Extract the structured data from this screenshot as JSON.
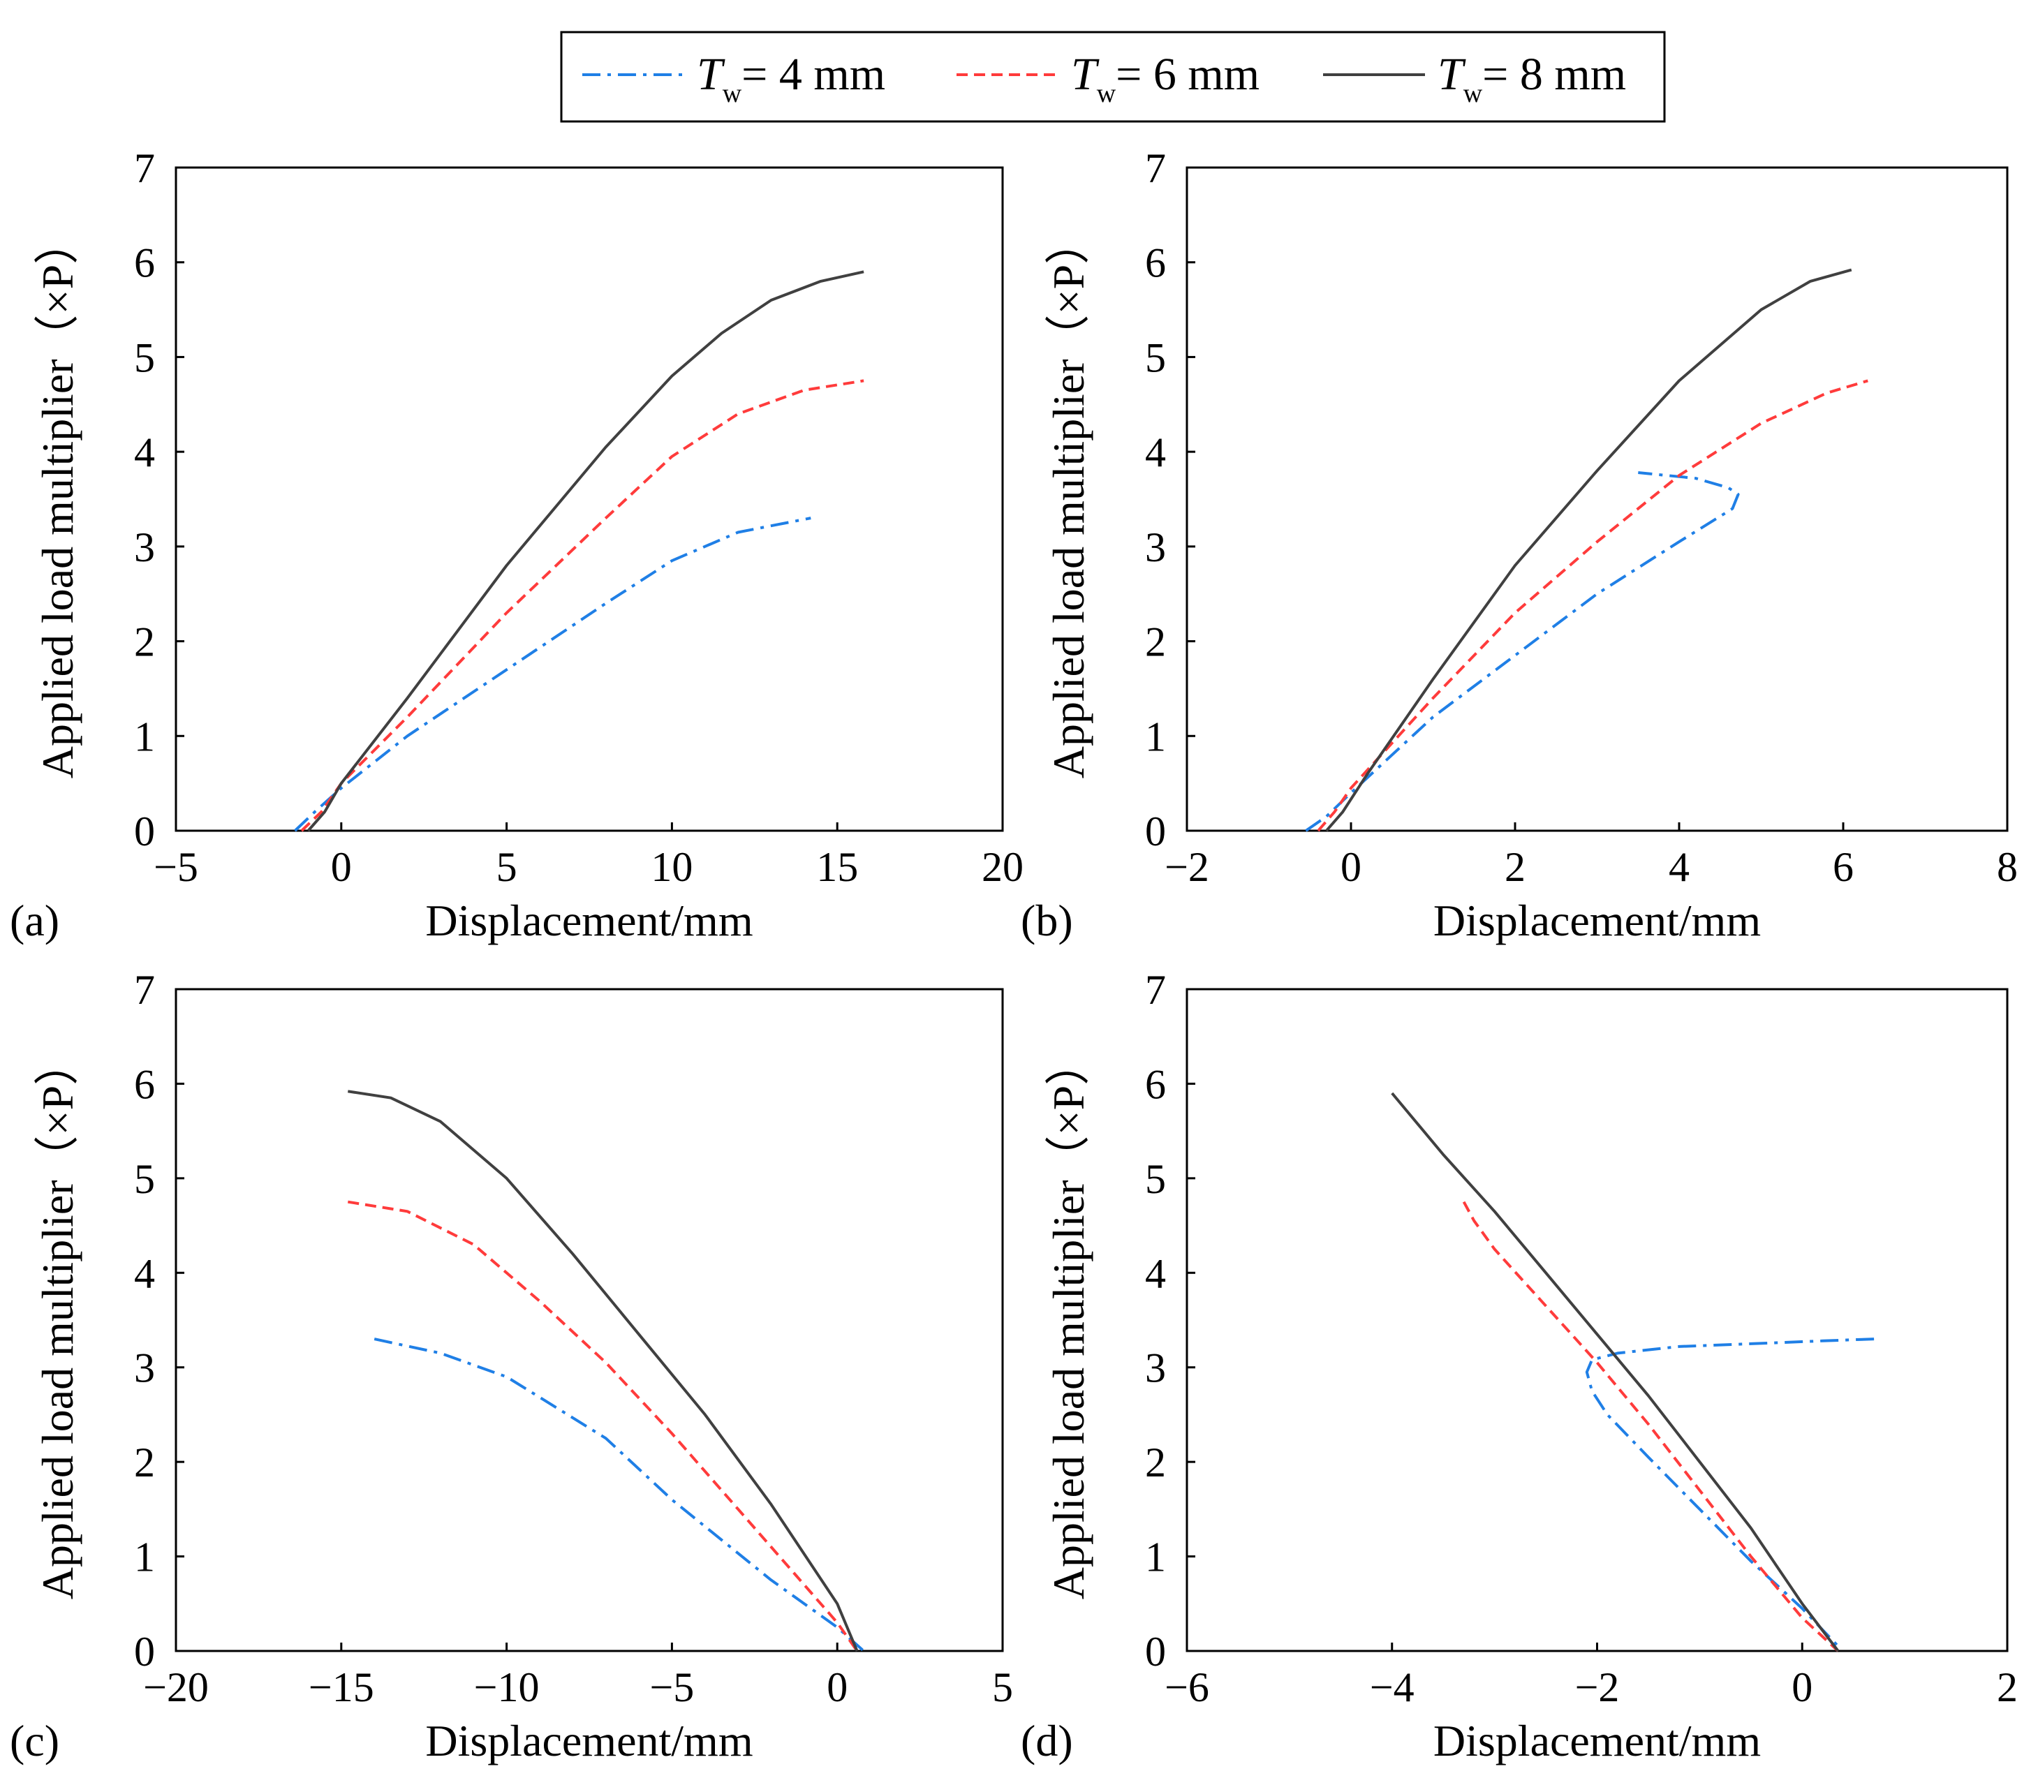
{
  "legend": {
    "entries": [
      {
        "symbol": "T",
        "sub": "w",
        "rest": "= 4 mm",
        "color": "#1f7fe6",
        "dash": "dashdot"
      },
      {
        "symbol": "T",
        "sub": "w",
        "rest": "= 6 mm",
        "color": "#ff3b3b",
        "dash": "dash"
      },
      {
        "symbol": "T",
        "sub": "w",
        "rest": "= 8 mm",
        "color": "#404040",
        "dash": "solid"
      }
    ]
  },
  "chart_data": [
    {
      "type": "line",
      "panel": "(a)",
      "xlabel": "Displacement/mm",
      "ylabel": "Applied load multiplier（×P）",
      "xlim": [
        -5,
        20
      ],
      "ylim": [
        0,
        7
      ],
      "xticks": [
        "−5",
        "0",
        "5",
        "10",
        "15",
        "20"
      ],
      "xtick_values": [
        -5,
        0,
        5,
        10,
        15,
        20
      ],
      "yticks": [
        "0",
        "1",
        "2",
        "3",
        "4",
        "5",
        "6",
        "7"
      ],
      "ytick_values": [
        0,
        1,
        2,
        3,
        4,
        5,
        6,
        7
      ],
      "series": [
        {
          "name": "Tw = 4 mm",
          "x": [
            -1.4,
            -0.8,
            0,
            2,
            5,
            8,
            10,
            12,
            14.2
          ],
          "y": [
            0,
            0.2,
            0.45,
            1.0,
            1.7,
            2.4,
            2.85,
            3.15,
            3.3
          ]
        },
        {
          "name": "Tw = 6 mm",
          "x": [
            -1.2,
            -0.6,
            0,
            2,
            5,
            8,
            10,
            12,
            14,
            15.8
          ],
          "y": [
            0,
            0.2,
            0.5,
            1.2,
            2.3,
            3.3,
            3.95,
            4.4,
            4.65,
            4.75
          ]
        },
        {
          "name": "Tw = 8 mm",
          "x": [
            -1.0,
            -0.5,
            0,
            2,
            5,
            8,
            10,
            11.5,
            13,
            14.5,
            15.8
          ],
          "y": [
            0,
            0.2,
            0.5,
            1.4,
            2.8,
            4.05,
            4.8,
            5.25,
            5.6,
            5.8,
            5.9
          ]
        }
      ]
    },
    {
      "type": "line",
      "panel": "(b)",
      "xlabel": "Displacement/mm",
      "ylabel": "Applied load multiplier（×P）",
      "xlim": [
        -2,
        8
      ],
      "ylim": [
        0,
        7
      ],
      "xticks": [
        "−2",
        "0",
        "2",
        "4",
        "6",
        "8"
      ],
      "xtick_values": [
        -2,
        0,
        2,
        4,
        6,
        8
      ],
      "yticks": [
        "0",
        "1",
        "2",
        "3",
        "4",
        "5",
        "6",
        "7"
      ],
      "ytick_values": [
        0,
        1,
        2,
        3,
        4,
        5,
        6,
        7
      ],
      "series": [
        {
          "name": "Tw = 4 mm",
          "x": [
            -0.55,
            -0.3,
            0,
            1,
            2,
            3,
            4,
            4.65,
            4.72,
            4.6,
            4.2,
            3.5
          ],
          "y": [
            0,
            0.15,
            0.4,
            1.2,
            1.85,
            2.5,
            3.05,
            3.4,
            3.55,
            3.62,
            3.72,
            3.78
          ]
        },
        {
          "name": "Tw = 6 mm",
          "x": [
            -0.4,
            -0.2,
            0,
            1,
            2,
            3,
            4,
            5,
            5.8,
            6.3
          ],
          "y": [
            0,
            0.2,
            0.45,
            1.4,
            2.3,
            3.05,
            3.75,
            4.3,
            4.62,
            4.75
          ]
        },
        {
          "name": "Tw = 8 mm",
          "x": [
            -0.3,
            -0.1,
            0.2,
            1,
            2,
            3,
            4,
            5,
            5.6,
            6.1
          ],
          "y": [
            0,
            0.2,
            0.6,
            1.6,
            2.8,
            3.8,
            4.75,
            5.5,
            5.8,
            5.92
          ]
        }
      ]
    },
    {
      "type": "line",
      "panel": "(c)",
      "xlabel": "Displacement/mm",
      "ylabel": "Applied load multiplier（×P）",
      "xlim": [
        -20,
        5
      ],
      "ylim": [
        0,
        7
      ],
      "xticks": [
        "−20",
        "−15",
        "−10",
        "−5",
        "0",
        "5"
      ],
      "xtick_values": [
        -20,
        -15,
        -10,
        -5,
        0,
        5
      ],
      "yticks": [
        "0",
        "1",
        "2",
        "3",
        "4",
        "5",
        "6",
        "7"
      ],
      "ytick_values": [
        0,
        1,
        2,
        3,
        4,
        5,
        6,
        7
      ],
      "series": [
        {
          "name": "Tw = 4 mm",
          "x": [
            -14,
            -12,
            -10,
            -7,
            -5,
            -2,
            0,
            0.8
          ],
          "y": [
            3.3,
            3.15,
            2.9,
            2.25,
            1.6,
            0.75,
            0.25,
            0
          ]
        },
        {
          "name": "Tw = 6 mm",
          "x": [
            -14.8,
            -13,
            -11,
            -9,
            -7,
            -5,
            -2,
            0,
            0.6
          ],
          "y": [
            4.75,
            4.65,
            4.3,
            3.7,
            3.05,
            2.3,
            1.1,
            0.3,
            0
          ]
        },
        {
          "name": "Tw = 8 mm",
          "x": [
            -14.8,
            -13.5,
            -12,
            -10,
            -8,
            -6,
            -4,
            -2,
            0,
            0.6
          ],
          "y": [
            5.92,
            5.85,
            5.6,
            5.0,
            4.2,
            3.35,
            2.5,
            1.55,
            0.5,
            0
          ]
        }
      ]
    },
    {
      "type": "line",
      "panel": "(d)",
      "xlabel": "Displacement/mm",
      "ylabel": "Applied load multiplier（×P）",
      "xlim": [
        -6,
        2
      ],
      "ylim": [
        0,
        7
      ],
      "xticks": [
        "−6",
        "−4",
        "−2",
        "0",
        "2"
      ],
      "xtick_values": [
        -6,
        -4,
        -2,
        0,
        2
      ],
      "yticks": [
        "0",
        "1",
        "2",
        "3",
        "4",
        "5",
        "6",
        "7"
      ],
      "ytick_values": [
        0,
        1,
        2,
        3,
        4,
        5,
        6,
        7
      ],
      "series": [
        {
          "name": "Tw = 4 mm",
          "x": [
            0.7,
            0.2,
            -0.5,
            -1.2,
            -1.8,
            -2.05,
            -2.1,
            -2.05,
            -1.9,
            -1.5,
            -1.0,
            -0.5,
            0,
            0.35
          ],
          "y": [
            3.3,
            3.28,
            3.25,
            3.22,
            3.15,
            3.08,
            2.95,
            2.75,
            2.5,
            2.05,
            1.5,
            0.95,
            0.45,
            0.05
          ]
        },
        {
          "name": "Tw = 6 mm",
          "x": [
            -3.3,
            -3.2,
            -3.0,
            -2.5,
            -2.0,
            -1.5,
            -1.0,
            -0.5,
            0,
            0.35
          ],
          "y": [
            4.75,
            4.55,
            4.25,
            3.65,
            3.05,
            2.4,
            1.7,
            1.0,
            0.35,
            0
          ]
        },
        {
          "name": "Tw = 8 mm",
          "x": [
            -4.0,
            -3.5,
            -3.0,
            -2.5,
            -2.0,
            -1.5,
            -1.0,
            -0.5,
            0,
            0.35
          ],
          "y": [
            5.9,
            5.25,
            4.65,
            4.0,
            3.35,
            2.7,
            2.0,
            1.3,
            0.5,
            0
          ]
        }
      ]
    }
  ]
}
